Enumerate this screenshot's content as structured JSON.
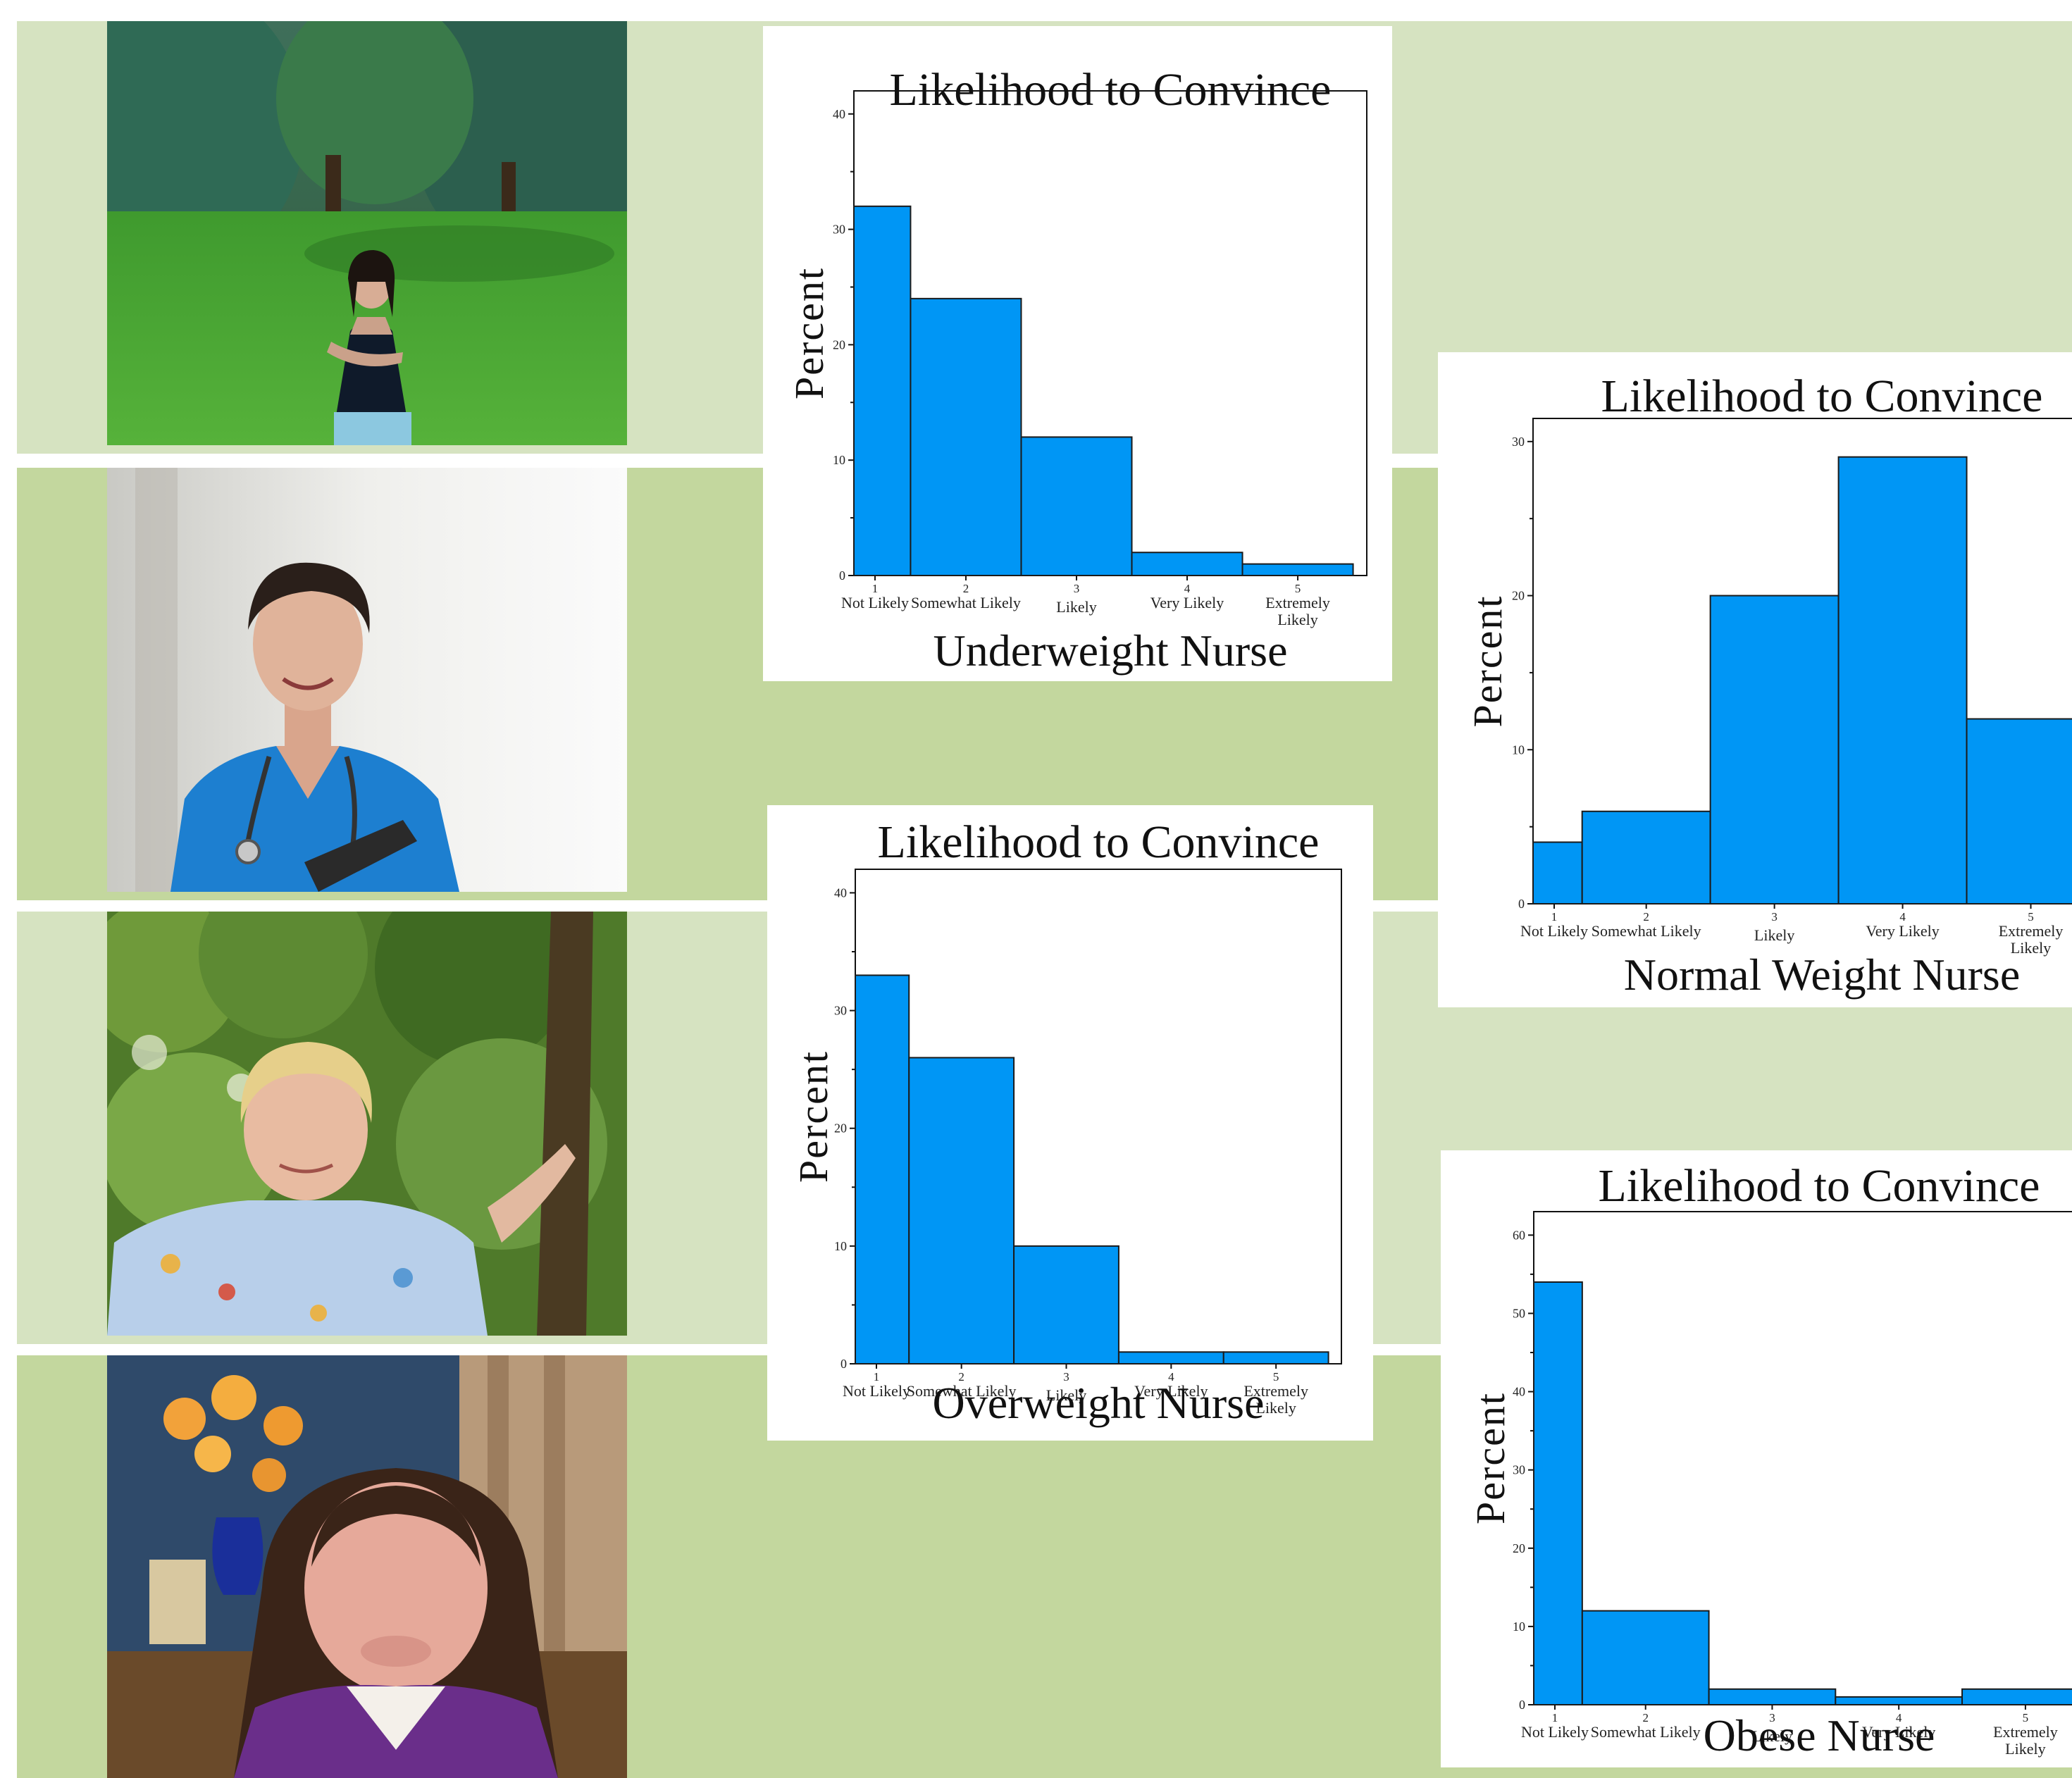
{
  "colors": {
    "band_light": "#d6e3c1",
    "band_dark": "#c3d79e",
    "bar_fill": "#0096f5",
    "bar_stroke": "#1b1b1b"
  },
  "photos": [
    {
      "name": "underweight-nurse-photo",
      "icon": "woman-standing-in-park"
    },
    {
      "name": "normal-weight-nurse-photo",
      "icon": "nurse-in-blue-scrubs"
    },
    {
      "name": "overweight-nurse-photo",
      "icon": "nurse-by-tree"
    },
    {
      "name": "obese-nurse-photo",
      "icon": "woman-in-purple-top"
    }
  ],
  "chart_data": [
    {
      "type": "bar",
      "title": "Likelihood to Convince",
      "xlabel": "Underweight Nurse",
      "ylabel": "Percent",
      "categories": [
        "Not Likely",
        "Somewhat Likely",
        "Likely",
        "Very Likely",
        "Extremely Likely"
      ],
      "category_numbers": [
        "1",
        "2",
        "3",
        "4",
        "5"
      ],
      "values": [
        32,
        24,
        12,
        2,
        1
      ],
      "ylim": [
        0,
        42
      ],
      "yticks": [
        0,
        10,
        20,
        30,
        40
      ],
      "grid": false
    },
    {
      "type": "bar",
      "title": "Likelihood to Convince",
      "xlabel": "Normal Weight Nurse",
      "ylabel": "Percent",
      "categories": [
        "Not Likely",
        "Somewhat Likely",
        "Likely",
        "Very Likely",
        "Extremely Likely"
      ],
      "category_numbers": [
        "1",
        "2",
        "3",
        "4",
        "5"
      ],
      "values": [
        4,
        6,
        20,
        29,
        12
      ],
      "ylim": [
        0,
        31.5
      ],
      "yticks": [
        0,
        10,
        20,
        30
      ],
      "grid": false
    },
    {
      "type": "bar",
      "title": "Likelihood to Convince",
      "xlabel": "Overweight Nurse",
      "ylabel": "Percent",
      "categories": [
        "Not Likely",
        "Somewhat Likely",
        "Likely",
        "Very Likely",
        "Extremely Likely"
      ],
      "category_numbers": [
        "1",
        "2",
        "3",
        "4",
        "5"
      ],
      "values": [
        33,
        26,
        10,
        1,
        1
      ],
      "ylim": [
        0,
        42
      ],
      "yticks": [
        0,
        10,
        20,
        30,
        40
      ],
      "grid": false
    },
    {
      "type": "bar",
      "title": "Likelihood to Convince",
      "xlabel": "Obese Nurse",
      "ylabel": "Percent",
      "categories": [
        "Not Likely",
        "Somewhat Likely",
        "Likely",
        "Very Likely",
        "Extremely Likely"
      ],
      "category_numbers": [
        "1",
        "2",
        "3",
        "4",
        "5"
      ],
      "values": [
        54,
        12,
        2,
        1,
        2
      ],
      "ylim": [
        0,
        63
      ],
      "yticks": [
        0,
        10,
        20,
        30,
        40,
        50,
        60
      ],
      "grid": false
    }
  ]
}
